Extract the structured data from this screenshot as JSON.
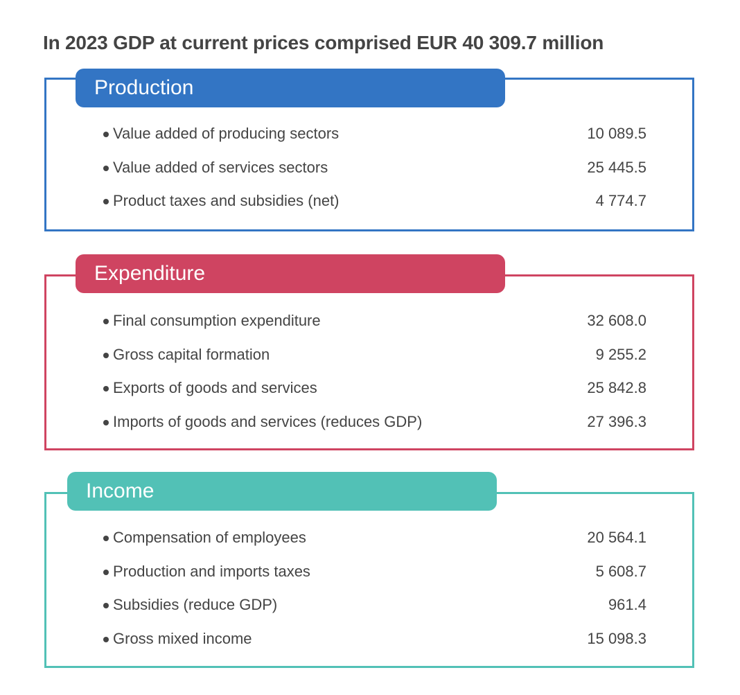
{
  "title": "In 2023 GDP at current prices comprised EUR 40 309.7 million",
  "colors": {
    "production": "#3375C4",
    "expenditure": "#CF4461",
    "income": "#52C1B6"
  },
  "sections": [
    {
      "name": "Production",
      "items": [
        {
          "label": "Value added of producing sectors",
          "value": "10 089.5"
        },
        {
          "label": "Value added of services sectors",
          "value": "25 445.5"
        },
        {
          "label": "Product taxes and subsidies (net)",
          "value": "4 774.7"
        }
      ]
    },
    {
      "name": "Expenditure",
      "items": [
        {
          "label": "Final consumption expenditure",
          "value": "32 608.0"
        },
        {
          "label": "Gross capital formation",
          "value": "9 255.2"
        },
        {
          "label": "Exports of goods and services",
          "value": "25 842.8"
        },
        {
          "label": "Imports of goods and services (reduces GDP)",
          "value": "27 396.3"
        }
      ]
    },
    {
      "name": "Income",
      "items": [
        {
          "label": "Compensation of employees",
          "value": "20 564.1"
        },
        {
          "label": "Production and imports taxes",
          "value": "5 608.7"
        },
        {
          "label": "Subsidies (reduce GDP)",
          "value": "961.4"
        },
        {
          "label": "Gross mixed income",
          "value": "15 098.3"
        }
      ]
    }
  ]
}
